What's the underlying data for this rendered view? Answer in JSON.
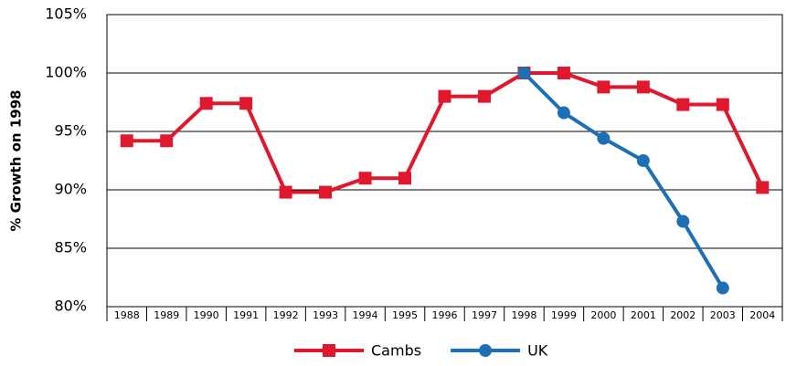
{
  "chart_data": {
    "type": "line",
    "y_axis_label": "% Growth on 1998",
    "categories": [
      "1988",
      "1989",
      "1990",
      "1991",
      "1992",
      "1993",
      "1994",
      "1995",
      "1996",
      "1997",
      "1998",
      "1999",
      "2000",
      "2001",
      "2002",
      "2003",
      "2004"
    ],
    "series": [
      {
        "name": "Cambs",
        "color": "#e0182d",
        "marker": "square",
        "values": [
          94.2,
          94.2,
          97.4,
          97.4,
          89.8,
          89.8,
          91.0,
          91.0,
          98.0,
          98.0,
          100,
          100,
          98.8,
          98.8,
          97.3,
          97.3,
          90.2
        ]
      },
      {
        "name": "UK",
        "color": "#1f6fb4",
        "marker": "circle",
        "values": [
          null,
          null,
          null,
          null,
          null,
          null,
          null,
          null,
          null,
          null,
          100,
          96.6,
          94.4,
          92.5,
          87.3,
          81.6,
          null
        ]
      }
    ],
    "ylim": [
      80,
      105
    ],
    "yticks": [
      {
        "value": 80,
        "label": "80%"
      },
      {
        "value": 85,
        "label": "85%"
      },
      {
        "value": 90,
        "label": "90%"
      },
      {
        "value": 95,
        "label": "95%"
      },
      {
        "value": 100,
        "label": "100%"
      },
      {
        "value": 105,
        "label": "105%"
      }
    ],
    "grid": true,
    "legend": "bottom"
  }
}
